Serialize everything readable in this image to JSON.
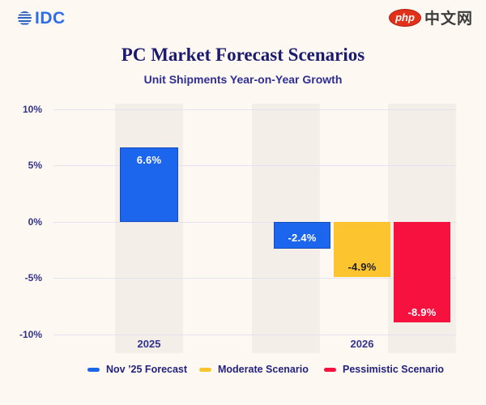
{
  "branding": {
    "idc_text": "IDC",
    "site_badge": "php",
    "site_name": "中文网"
  },
  "chart_data": {
    "type": "bar",
    "title": "PC Market Forecast Scenarios",
    "subtitle": "Unit Shipments Year-on-Year Growth",
    "categories": [
      "2025",
      "2026"
    ],
    "series": [
      {
        "name": "Nov ’25 Forecast",
        "color": "#1c66ee",
        "values": [
          6.6,
          -2.4
        ]
      },
      {
        "name": "Moderate Scenario",
        "color": "#fcc52f",
        "values": [
          null,
          -4.9
        ]
      },
      {
        "name": "Pessimistic Scenario",
        "color": "#f6113f",
        "values": [
          null,
          -8.9
        ]
      }
    ],
    "ylim": [
      -10,
      10
    ],
    "y_ticks": [
      {
        "label": "10%",
        "value": 10
      },
      {
        "label": "5%",
        "value": 5
      },
      {
        "label": "0%",
        "value": 0
      },
      {
        "label": "-5%",
        "value": -5
      },
      {
        "label": "-10%",
        "value": -10
      }
    ],
    "grid": true,
    "legend_position": "bottom",
    "bars": [
      {
        "category": "2025",
        "series": "Nov ’25 Forecast",
        "value": 6.6,
        "label": "6.6%",
        "color": "#1c66ee",
        "label_color": "#ffffff"
      },
      {
        "category": "2026",
        "series": "Nov ’25 Forecast",
        "value": -2.4,
        "label": "-2.4%",
        "color": "#1c66ee",
        "label_color": "#ffffff"
      },
      {
        "category": "2026",
        "series": "Moderate Scenario",
        "value": -4.9,
        "label": "-4.9%",
        "color": "#fcc52f",
        "label_color": "#1f1f2e"
      },
      {
        "category": "2026",
        "series": "Pessimistic Scenario",
        "value": -8.9,
        "label": "-8.9%",
        "color": "#f6113f",
        "label_color": "#ffffff"
      }
    ]
  }
}
